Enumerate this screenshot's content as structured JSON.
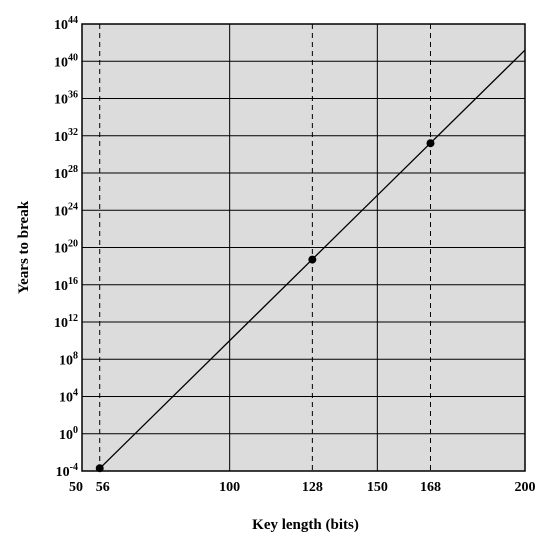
{
  "chart_data": {
    "type": "line",
    "xlabel": "Key length (bits)",
    "ylabel": "Years to break",
    "xlim": [
      50,
      200
    ],
    "ylim_log10": [
      -4,
      44
    ],
    "y_scale": "log",
    "x_ticks": [
      {
        "value": 50,
        "label": "50"
      },
      {
        "value": 56,
        "label": "56"
      },
      {
        "value": 100,
        "label": "100"
      },
      {
        "value": 128,
        "label": "128"
      },
      {
        "value": 150,
        "label": "150"
      },
      {
        "value": 168,
        "label": "168"
      },
      {
        "value": 200,
        "label": "200"
      }
    ],
    "y_ticks": [
      {
        "exp": -4,
        "base": "10",
        "power": "-4"
      },
      {
        "exp": 0,
        "base": "10",
        "power": "0"
      },
      {
        "exp": 4,
        "base": "10",
        "power": "4"
      },
      {
        "exp": 8,
        "base": "10",
        "power": "8"
      },
      {
        "exp": 12,
        "base": "10",
        "power": "12"
      },
      {
        "exp": 16,
        "base": "10",
        "power": "16"
      },
      {
        "exp": 20,
        "base": "10",
        "power": "20"
      },
      {
        "exp": 24,
        "base": "10",
        "power": "24"
      },
      {
        "exp": 28,
        "base": "10",
        "power": "28"
      },
      {
        "exp": 32,
        "base": "10",
        "power": "32"
      },
      {
        "exp": 36,
        "base": "10",
        "power": "36"
      },
      {
        "exp": 40,
        "base": "10",
        "power": "40"
      },
      {
        "exp": 44,
        "base": "10",
        "power": "44"
      }
    ],
    "grid_solid_x": [
      100,
      150
    ],
    "grid_dashed_x": [
      56,
      128,
      168
    ],
    "grid_y": true,
    "line": {
      "x": [
        50,
        200
      ],
      "y_log10": [
        -5.6,
        41.2
      ]
    },
    "points": [
      {
        "x": 56,
        "y_log10": -3.7
      },
      {
        "x": 128,
        "y_log10": 18.7
      },
      {
        "x": 168,
        "y_log10": 31.2
      }
    ],
    "colors": {
      "plot_bg": "#dcdcdc",
      "line": "#000000",
      "grid": "#000000"
    }
  }
}
